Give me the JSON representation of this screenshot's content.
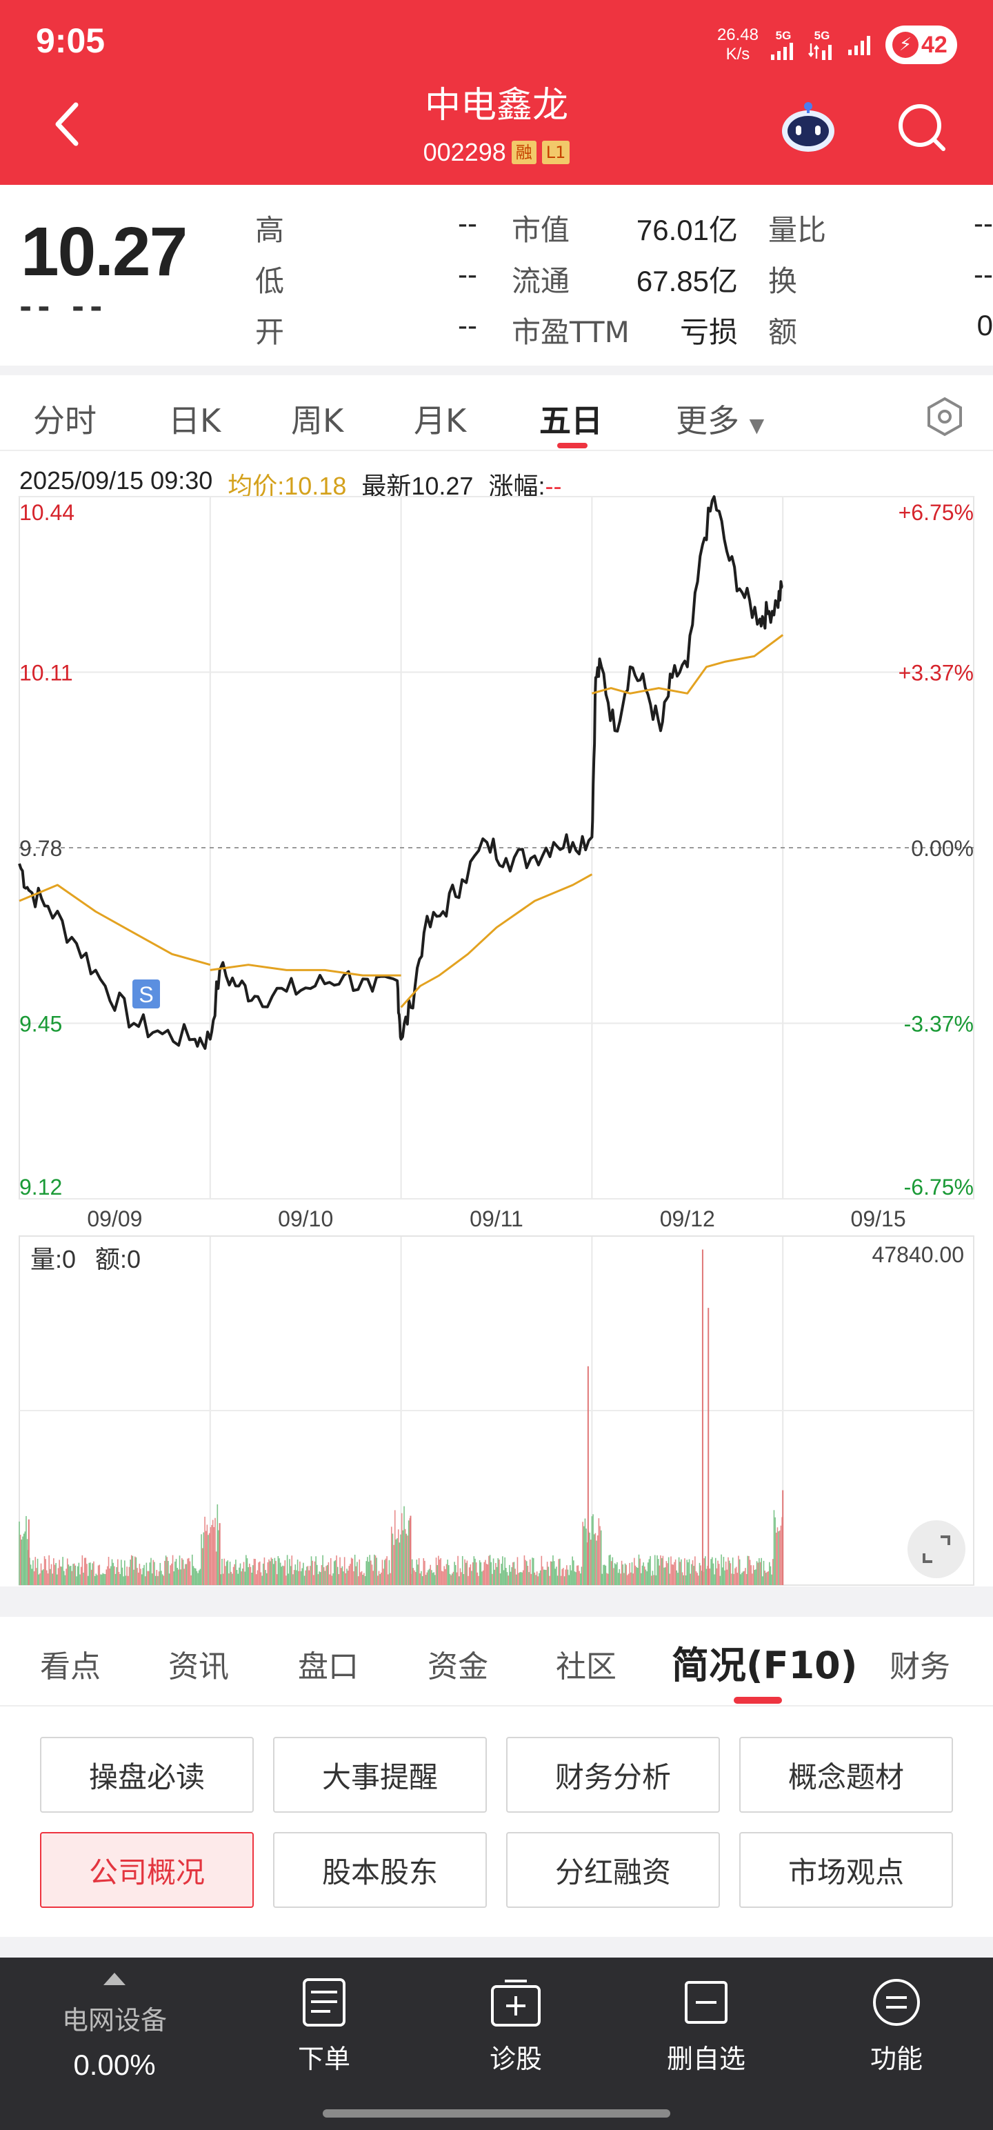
{
  "status_bar": {
    "time": "9:05",
    "net_speed_value": "26.48",
    "net_speed_unit": "K/s",
    "signal_1": "5G",
    "signal_2": "5G",
    "battery": "42"
  },
  "header": {
    "stock_name": "中电鑫龙",
    "stock_code": "002298",
    "tag_margin": "融",
    "tag_level": "L1",
    "icons": [
      "back-icon",
      "robot-assistant-icon",
      "search-icon"
    ],
    "background_color": "#ee3440"
  },
  "quote": {
    "last_price": "10.27",
    "last_change": "-- --",
    "rows": [
      {
        "label": "高",
        "value": "--",
        "label2": "市值",
        "value2": "76.01亿",
        "label3": "量比",
        "value3": "--"
      },
      {
        "label": "低",
        "value": "--",
        "label2": "流通",
        "value2": "67.85亿",
        "label3": "换",
        "value3": "--"
      },
      {
        "label": "开",
        "value": "--",
        "label2": "市盈TTM",
        "value2": "亏损",
        "label3": "额",
        "value3": "0"
      }
    ]
  },
  "period_tabs": {
    "items": [
      "分时",
      "日K",
      "周K",
      "月K",
      "五日",
      "更多"
    ],
    "active": "五日",
    "settings_icon": "settings-hexagon-icon"
  },
  "chart_info": {
    "datetime": "2025/09/15 09:30",
    "avg_label": "均价:10.18",
    "latest_label": "最新10.27",
    "change_label": "涨幅:",
    "change_value": "--"
  },
  "volume_info": {
    "vol_label": "量:0",
    "amount_label": "额:0",
    "max_value": "47840.00",
    "fullscreen_icon": "expand-icon"
  },
  "chart_data": {
    "type": "line",
    "title": "",
    "price_ticks": [
      "10.44",
      "10.11",
      "9.78",
      "9.45",
      "9.12"
    ],
    "pct_ticks": [
      "+6.75%",
      "+3.37%",
      "0.00%",
      "-3.37%",
      "-6.75%"
    ],
    "x_labels": [
      "09/09",
      "09/10",
      "09/11",
      "09/12",
      "09/15"
    ],
    "ylim": [
      9.12,
      10.44
    ],
    "prev_close": 9.78,
    "marker": "S",
    "series": [
      {
        "color": "#1e1e1e",
        "x": [
          0,
          0.05,
          0.15,
          0.3,
          0.45,
          0.6,
          0.75,
          0.92,
          1.0,
          1.05,
          1.15,
          1.25,
          1.4,
          1.55,
          1.7,
          1.85,
          1.98,
          2.0,
          2.05,
          2.12,
          2.22,
          2.32,
          2.45,
          2.55,
          2.68,
          2.8,
          2.9,
          3.0,
          3.02,
          3.05,
          3.12,
          3.2,
          3.28,
          3.36,
          3.42,
          3.5,
          3.58,
          3.64,
          3.72,
          3.8,
          3.88,
          3.92,
          3.97,
          4.0
        ],
        "values": [
          9.75,
          9.7,
          9.67,
          9.6,
          9.52,
          9.45,
          9.43,
          9.42,
          9.42,
          9.55,
          9.52,
          9.5,
          9.51,
          9.52,
          9.54,
          9.51,
          9.53,
          9.42,
          9.48,
          9.62,
          9.66,
          9.72,
          9.79,
          9.76,
          9.76,
          9.79,
          9.79,
          9.8,
          10.1,
          10.12,
          10.0,
          10.12,
          10.08,
          10.0,
          10.1,
          10.12,
          10.35,
          10.44,
          10.32,
          10.25,
          10.21,
          10.22,
          10.24,
          10.27
        ]
      },
      {
        "color": "#e3a220",
        "x": [
          0,
          0.2,
          0.4,
          0.6,
          0.8,
          1.0,
          1.0,
          1.2,
          1.4,
          1.6,
          1.8,
          2.0,
          2.0,
          2.1,
          2.2,
          2.35,
          2.5,
          2.7,
          2.9,
          3.0,
          3.0,
          3.1,
          3.2,
          3.35,
          3.5,
          3.6,
          3.7,
          3.85,
          4.0
        ],
        "values": [
          9.68,
          9.71,
          9.66,
          9.62,
          9.58,
          9.56,
          9.55,
          9.56,
          9.55,
          9.55,
          9.54,
          9.54,
          9.48,
          9.52,
          9.54,
          9.58,
          9.63,
          9.68,
          9.71,
          9.73,
          10.07,
          10.08,
          10.07,
          10.08,
          10.07,
          10.12,
          10.13,
          10.14,
          10.18
        ]
      }
    ],
    "volume": {
      "max": 47840.0,
      "peaks": [
        {
          "x": 2.98,
          "value": 30000
        },
        {
          "x": 3.58,
          "value": 46000
        },
        {
          "x": 3.61,
          "value": 38000
        },
        {
          "x": 0.05,
          "value": 9000
        },
        {
          "x": 1.05,
          "value": 8500
        },
        {
          "x": 2.05,
          "value": 9500
        },
        {
          "x": 4.0,
          "value": 13000
        }
      ]
    }
  },
  "section_tabs": {
    "items": [
      "看点",
      "资讯",
      "盘口",
      "资金",
      "社区",
      "简况(F10)",
      "财务"
    ],
    "active": "简况(F10)"
  },
  "function_buttons": {
    "items": [
      "操盘必读",
      "大事提醒",
      "财务分析",
      "概念题材",
      "公司概况",
      "股本股东",
      "分红融资",
      "市场观点"
    ],
    "selected": "公司概况"
  },
  "bottom_bar": {
    "sector_name": "电网设备",
    "sector_change": "0.00%",
    "items": [
      {
        "label": "下单",
        "icon": "order-document-icon"
      },
      {
        "label": "诊股",
        "icon": "diagnose-add-icon"
      },
      {
        "label": "删自选",
        "icon": "remove-watchlist-icon"
      },
      {
        "label": "功能",
        "icon": "menu-function-icon"
      }
    ]
  }
}
